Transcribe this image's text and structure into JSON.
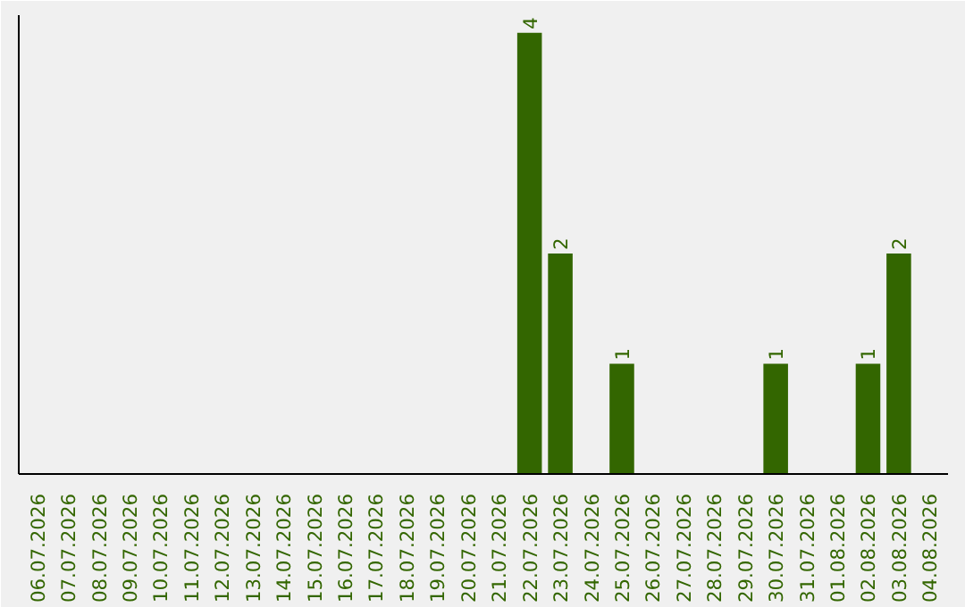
{
  "chart_data": {
    "type": "bar",
    "categories": [
      "06.07.2026",
      "07.07.2026",
      "08.07.2026",
      "09.07.2026",
      "10.07.2026",
      "11.07.2026",
      "12.07.2026",
      "13.07.2026",
      "14.07.2026",
      "15.07.2026",
      "16.07.2026",
      "17.07.2026",
      "18.07.2026",
      "19.07.2026",
      "20.07.2026",
      "21.07.2026",
      "22.07.2026",
      "23.07.2026",
      "24.07.2026",
      "25.07.2026",
      "26.07.2026",
      "27.07.2026",
      "28.07.2026",
      "29.07.2026",
      "30.07.2026",
      "31.07.2026",
      "01.08.2026",
      "02.08.2026",
      "03.08.2026",
      "04.08.2026"
    ],
    "values": [
      null,
      null,
      null,
      null,
      null,
      null,
      null,
      null,
      null,
      null,
      null,
      null,
      null,
      null,
      null,
      null,
      4,
      2,
      null,
      1,
      null,
      null,
      null,
      null,
      1,
      null,
      null,
      1,
      2,
      null
    ],
    "value_labels": [
      null,
      null,
      null,
      null,
      null,
      null,
      null,
      null,
      null,
      null,
      null,
      null,
      null,
      null,
      null,
      null,
      "4",
      "2",
      null,
      "1",
      null,
      null,
      null,
      null,
      "1",
      null,
      null,
      "1",
      "2",
      null
    ],
    "color": "#336600",
    "grid": false,
    "tick_labels": "x"
  }
}
